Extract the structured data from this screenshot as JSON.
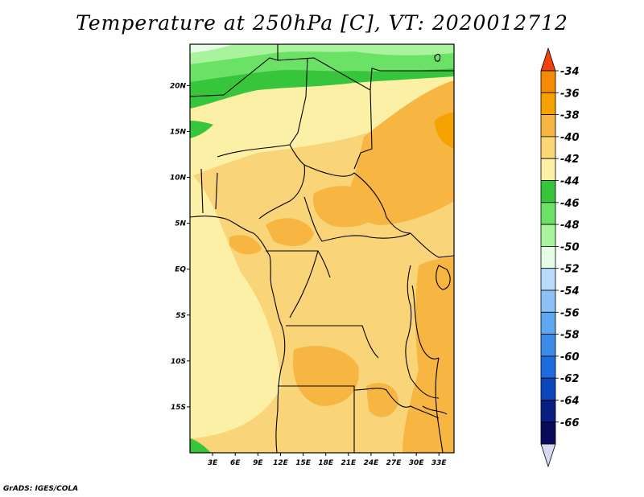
{
  "title": "Temperature at 250hPa [C], VT: 2020012712",
  "credit": "GrADS: IGES/COLA",
  "map": {
    "lon_range": [
      0,
      35
    ],
    "lat_range": [
      -20,
      24.5
    ],
    "lon_ticks": [
      "3E",
      "6E",
      "9E",
      "12E",
      "15E",
      "18E",
      "21E",
      "24E",
      "27E",
      "30E",
      "33E"
    ],
    "lat_ticks": [
      "20N",
      "15N",
      "10N",
      "5N",
      "EQ",
      "5S",
      "10S",
      "15S"
    ]
  },
  "colorbar": {
    "labels": [
      "-34",
      "-36",
      "-38",
      "-40",
      "-42",
      "-44",
      "-46",
      "-48",
      "-50",
      "-52",
      "-54",
      "-56",
      "-58",
      "-60",
      "-62",
      "-64",
      "-66"
    ],
    "colors": [
      "#f0420a",
      "#f78a05",
      "#f5a100",
      "#f7b541",
      "#fad676",
      "#fcf0a6",
      "#37c53c",
      "#6be165",
      "#a8f39c",
      "#e5fce5",
      "#b7dbf9",
      "#8dc1f5",
      "#5ea7f2",
      "#3c8ce8",
      "#1e6bde",
      "#0d47bc",
      "#0a1f82",
      "#0a0a5a",
      "#d8d8f2"
    ]
  }
}
